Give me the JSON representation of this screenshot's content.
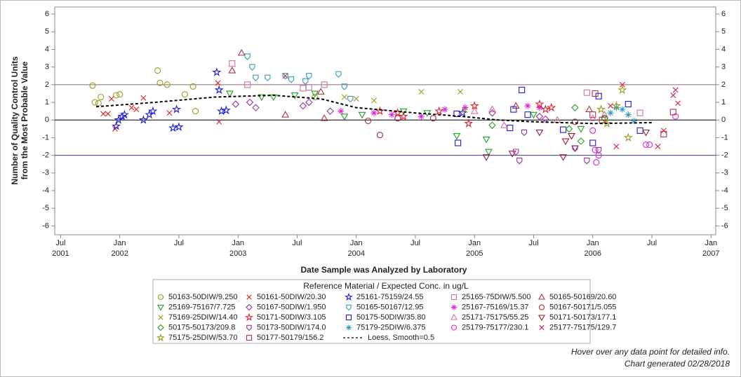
{
  "chart_data": {
    "type": "scatter",
    "ylabel": [
      "Number of Quality Control Units",
      "from the Most Probable Value"
    ],
    "xlabel": "Date Sample was Analyzed by Laboratory",
    "legend_title": "Reference Material / Expected Conc. in ug/L",
    "notes": [
      "Hover over any data point for detailed info.",
      "Chart generated 02/28/2018"
    ],
    "xlim": [
      2001.45,
      2007.04
    ],
    "xticks": [
      {
        "value": 2001.5,
        "label": "Jul 2001"
      },
      {
        "value": 2002,
        "label": "Jan 2002"
      },
      {
        "value": 2002.5,
        "label": "Jul"
      },
      {
        "value": 2003,
        "label": "Jan 2003"
      },
      {
        "value": 2003.5,
        "label": "Jul"
      },
      {
        "value": 2004,
        "label": "Jan 2004"
      },
      {
        "value": 2004.5,
        "label": "Jul"
      },
      {
        "value": 2005,
        "label": "Jan 2005"
      },
      {
        "value": 2005.5,
        "label": "Jul"
      },
      {
        "value": 2006,
        "label": "Jan 2006"
      },
      {
        "value": 2006.5,
        "label": "Jul"
      },
      {
        "value": 2007,
        "label": "Jan 2007"
      }
    ],
    "ylim": [
      -6.5,
      6.4
    ],
    "yticks": [
      -6,
      -5,
      -4,
      -3,
      -2,
      -1,
      0,
      1,
      2,
      3,
      4,
      5,
      6
    ],
    "reflines": [
      {
        "value": 2,
        "color": "#8a6a6a"
      },
      {
        "value": 0,
        "color": "#000000"
      },
      {
        "value": -2,
        "color": "#2a3aa0"
      }
    ],
    "series": [
      {
        "name": "50163-50DIW/9.250",
        "color": "#9a9a20",
        "marker": "circle",
        "x": [
          2001.77,
          2001.79,
          2001.82,
          2001.84,
          2001.97,
          2002.0,
          2002.32,
          2002.34,
          2002.4,
          2002.55,
          2002.62,
          2002.64,
          2003.65
        ],
        "values": [
          1.95,
          1.0,
          0.95,
          1.3,
          1.4,
          1.45,
          2.8,
          2.1,
          2.0,
          1.45,
          1.9,
          0.5,
          1.3
        ]
      },
      {
        "name": "50161-50DIW/20.30",
        "color": "#e0202a",
        "marker": "x",
        "x": [
          2001.86,
          2001.9,
          2001.93,
          2001.96,
          2002.1,
          2002.14,
          2002.2,
          2002.42,
          2002.83,
          2002.84,
          2003.4
        ],
        "values": [
          0.35,
          0.35,
          1.2,
          -0.5,
          0.7,
          0.6,
          1.25,
          0.4,
          2.1,
          -0.1,
          2.5
        ]
      },
      {
        "name": "25161-75159/24.55",
        "color": "#1a1ae0",
        "marker": "star",
        "x": [
          2001.97,
          2001.99,
          2002.02,
          2002.04,
          2002.2,
          2002.25,
          2002.28,
          2002.45,
          2002.48,
          2002.5,
          2002.82,
          2002.84,
          2002.86,
          2002.9,
          2004.9
        ],
        "values": [
          -0.35,
          0.0,
          0.2,
          0.3,
          0.0,
          0.3,
          0.5,
          -0.45,
          0.6,
          -0.4,
          2.7,
          1.7,
          0.5,
          0.55,
          0.4
        ]
      },
      {
        "name": "25165-75DIW/5.500",
        "color": "#d070a0",
        "marker": "square",
        "x": [
          2002.95,
          2003.08,
          2003.55,
          2003.6,
          2003.73,
          2005.95,
          2006.4
        ],
        "values": [
          3.2,
          2.0,
          1.8,
          1.85,
          2.0,
          1.55,
          0.4
        ]
      },
      {
        "name": "50165-50169/20.60",
        "color": "#b03040",
        "marker": "triangle",
        "x": [
          2002.95,
          2003.03,
          2003.4,
          2003.7,
          2003.73,
          2005.35,
          2005.97
        ],
        "values": [
          2.8,
          3.8,
          0.3,
          1.6,
          0.1,
          0.8,
          0.6
        ]
      },
      {
        "name": "25169-75167/7.725",
        "color": "#20a020",
        "marker": "triangle-down",
        "x": [
          2002.93,
          2003.2,
          2003.3,
          2003.48,
          2003.65,
          2003.9,
          2004.05,
          2004.4,
          2004.6,
          2004.85,
          2005.1,
          2005.12,
          2005.5,
          2005.9
        ],
        "values": [
          1.5,
          1.3,
          1.3,
          1.4,
          1.5,
          0.2,
          0.3,
          0.5,
          0.4,
          -0.9,
          -1.1,
          -1.8,
          0.3,
          -0.5
        ]
      },
      {
        "name": "50167-50DIW/1.950",
        "color": "#9b30a8",
        "marker": "diamond",
        "x": [
          2002.98,
          2003.1,
          2003.15,
          2003.55,
          2003.6,
          2003.78,
          2005.15,
          2005.55,
          2005.6
        ],
        "values": [
          0.9,
          1.0,
          0.7,
          0.8,
          1.0,
          0.5,
          0.4,
          0.2,
          0.05
        ]
      },
      {
        "name": "50165-50167/12.95",
        "color": "#3399bb",
        "marker": "shield",
        "x": [
          2003.08,
          2003.12,
          2003.15,
          2003.25,
          2003.4,
          2003.45,
          2003.57,
          2003.6,
          2003.85,
          2003.9,
          2003.95
        ],
        "values": [
          3.6,
          3.0,
          2.4,
          2.4,
          2.5,
          2.3,
          2.2,
          2.5,
          2.6,
          1.9,
          1.2
        ]
      },
      {
        "name": "25167-75169/15.37",
        "color": "#e020e0",
        "marker": "asterisk",
        "x": [
          2003.87,
          2004.15,
          2004.3,
          2004.55,
          2004.75,
          2004.92,
          2005.45,
          2005.55
        ],
        "values": [
          0.5,
          0.4,
          0.3,
          0.2,
          0.6,
          0.7,
          0.8,
          0.7
        ]
      },
      {
        "name": "50167-50171/5.055",
        "color": "#b02030",
        "marker": "circle",
        "x": [
          2004.1,
          2004.2,
          2004.35,
          2004.65,
          2005.85,
          2006.1
        ],
        "values": [
          -0.05,
          -0.85,
          0.1,
          0.1,
          -0.1,
          0.1
        ]
      },
      {
        "name": "75169-25DIW/14.40",
        "color": "#9a9a20",
        "marker": "x",
        "x": [
          2003.9,
          2004.0,
          2004.15,
          2004.55,
          2004.88,
          2004.92
        ],
        "values": [
          1.3,
          1.2,
          1.1,
          1.6,
          1.6,
          0.55
        ]
      },
      {
        "name": "50171-50DIW/3.105",
        "color": "#e0202a",
        "marker": "star",
        "x": [
          2004.2,
          2004.35,
          2004.4,
          2004.7,
          2004.95,
          2005.0,
          2005.55,
          2005.6,
          2005.65
        ],
        "values": [
          0.5,
          0.4,
          0.2,
          0.5,
          -0.2,
          0.8,
          0.9,
          0.6,
          0.7
        ]
      },
      {
        "name": "50175-50DIW/35.80",
        "color": "#1a1ae0",
        "marker": "square",
        "x": [
          2004.85,
          2004.86,
          2005.3,
          2005.33,
          2005.4,
          2005.45,
          2005.75,
          2006.0,
          2006.05,
          2006.3,
          2006.4
        ],
        "values": [
          0.35,
          -1.3,
          -0.45,
          0.6,
          1.7,
          0.3,
          -0.55,
          -1.3,
          1.35,
          0.9,
          -0.6
        ]
      },
      {
        "name": "25171-75175/55.25",
        "color": "#d070a0",
        "marker": "triangle",
        "x": [
          2005.0,
          2005.15,
          2005.25,
          2005.7,
          2006.0,
          2006.1
        ],
        "values": [
          0.5,
          0.6,
          -0.3,
          0.0,
          0.1,
          0.3
        ]
      },
      {
        "name": "50171-50173/177.1",
        "color": "#a01828",
        "marker": "triangle-down",
        "x": [
          2005.1,
          2005.32,
          2005.55,
          2005.75,
          2005.77,
          2005.82,
          2005.85,
          2006.45
        ],
        "values": [
          -2.1,
          -1.9,
          -0.7,
          -2.1,
          -1.2,
          -0.9,
          -1.6,
          -0.7
        ]
      },
      {
        "name": "50175-50173/209.8",
        "color": "#20a020",
        "marker": "diamond",
        "x": [
          2005.15,
          2005.8,
          2005.85,
          2005.9,
          2006.1
        ],
        "values": [
          -0.3,
          -0.5,
          0.7,
          -1.2,
          0.1
        ]
      },
      {
        "name": "50173-50DIW/174.0",
        "color": "#9b30a8",
        "marker": "shield",
        "x": [
          2005.35,
          2005.38,
          2005.42,
          2005.85,
          2005.95,
          2006.05
        ],
        "values": [
          -1.8,
          -2.3,
          -0.7,
          -1.6,
          -2.3,
          -1.7
        ]
      },
      {
        "name": "75179-25DIW/6.375",
        "color": "#3399bb",
        "marker": "asterisk",
        "x": [
          2006.15,
          2006.2,
          2006.25,
          2006.3,
          2006.35
        ],
        "values": [
          0.4,
          0.7,
          0.6,
          0.3,
          -0.05
        ]
      },
      {
        "name": "25179-75177/230.1",
        "color": "#e020e0",
        "marker": "circle",
        "x": [
          2006.0,
          2006.02,
          2006.03,
          2006.05,
          2006.45,
          2006.48,
          2006.7
        ],
        "values": [
          -0.6,
          -1.7,
          -2.4,
          -2.0,
          -1.4,
          -1.4,
          0.2
        ]
      },
      {
        "name": "25177-75175/129.7",
        "color": "#d02040",
        "marker": "x",
        "x": [
          2006.15,
          2006.2,
          2006.25,
          2006.55,
          2006.6,
          2006.68,
          2006.7,
          2006.72
        ],
        "values": [
          0.8,
          -1.5,
          2.0,
          -1.5,
          -0.6,
          1.4,
          1.7,
          0.95
        ]
      },
      {
        "name": "75175-25DIW/53.70",
        "color": "#9a9a20",
        "marker": "star",
        "x": [
          2006.07,
          2006.12,
          2006.2,
          2006.25,
          2006.3
        ],
        "values": [
          0.6,
          -0.2,
          0.8,
          1.7,
          -1.0
        ]
      },
      {
        "name": "50177-50179/156.2",
        "color": "#c03040",
        "marker": "square",
        "x": [
          2006.0,
          2006.02,
          2006.08,
          2006.6,
          2006.68
        ],
        "values": [
          0.3,
          1.5,
          0.0,
          -0.8,
          0.45
        ]
      },
      {
        "name": "Loess, Smooth=0.5",
        "color": "#000000",
        "marker": "dashed-line",
        "x": [
          2001.8,
          2002.3,
          2002.8,
          2003.3,
          2003.7,
          2004.0,
          2004.5,
          2004.9,
          2005.2,
          2005.5,
          2006.0,
          2006.5
        ],
        "values": [
          0.75,
          1.0,
          1.3,
          1.4,
          1.2,
          0.7,
          0.4,
          0.2,
          0.0,
          -0.1,
          -0.2,
          -0.15
        ]
      }
    ]
  }
}
